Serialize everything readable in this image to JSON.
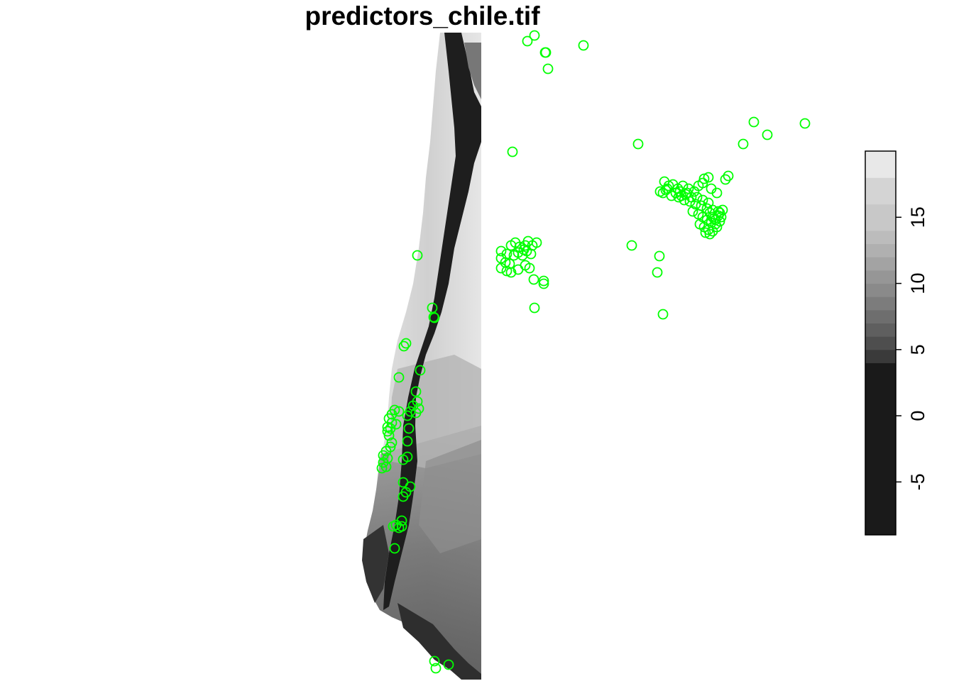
{
  "title": "predictors_chile.tif",
  "legend": {
    "ticks": [
      {
        "value": 15,
        "label": "15"
      },
      {
        "value": 10,
        "label": "10"
      },
      {
        "value": 5,
        "label": "5"
      },
      {
        "value": 0,
        "label": "0"
      },
      {
        "value": -5,
        "label": "-5"
      }
    ],
    "range": [
      -9,
      20
    ],
    "shades": [
      "#1a1a1a",
      "#1a1a1a",
      "#1a1a1a",
      "#1a1a1a",
      "#1a1a1a",
      "#1a1a1a",
      "#1a1a1a",
      "#1a1a1a",
      "#1a1a1a",
      "#1a1a1a",
      "#1a1a1a",
      "#1a1a1a",
      "#1a1a1a",
      "#3a3a3a",
      "#4e4e4e",
      "#5f5f5f",
      "#6e6e6e",
      "#7c7c7c",
      "#8a8a8a",
      "#969696",
      "#a3a3a3",
      "#b0b0b0",
      "#bcbcbc",
      "#c8c8c8",
      "#c8c8c8",
      "#d4d4d4",
      "#d4d4d4",
      "#e8e8e8",
      "#e8e8e8"
    ]
  },
  "colors": {
    "points": "#00ff00",
    "land_dark": "#2a2a2a",
    "land_light": "#dcdcdc"
  },
  "occurrence_count": 205
}
